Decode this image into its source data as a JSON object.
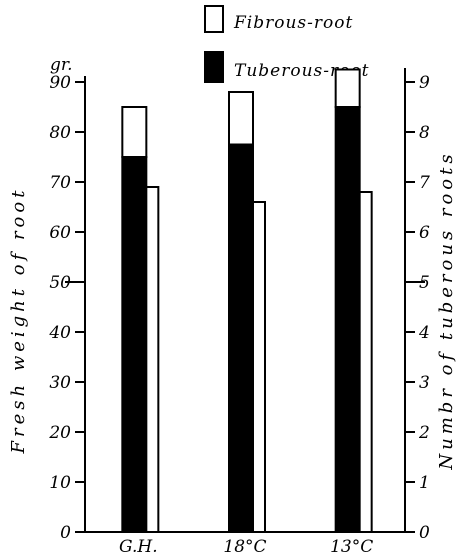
{
  "chart_data": {
    "type": "bar",
    "categories": [
      "G.H.",
      "18°C",
      "13°C"
    ],
    "series": [
      {
        "name": "Tuberous-root",
        "axis": "left",
        "stack": "fresh_weight",
        "fill": "#000000",
        "values": [
          75,
          77.5,
          85
        ]
      },
      {
        "name": "Fibrous-root",
        "axis": "left",
        "stack": "fresh_weight",
        "fill": "#ffffff",
        "values": [
          10,
          10.5,
          7.5
        ]
      },
      {
        "name": "",
        "axis": "right",
        "stack": "tuber_count",
        "fill": "#ffffff",
        "values": [
          6.9,
          6.6,
          6.8
        ]
      }
    ],
    "ylabel": "Fresh weight of root",
    "yunit": "gr.",
    "ylim": [
      0,
      100
    ],
    "yticks": [
      "0",
      "10",
      "20",
      "30",
      "40",
      "50",
      "60",
      "70",
      "80",
      "90"
    ],
    "y2label": "Numbr of tuberous roots",
    "y2lim": [
      0,
      10
    ],
    "y2ticks": [
      "0",
      "1",
      "2",
      "3",
      "4",
      "5",
      "6",
      "7",
      "8",
      "9"
    ],
    "legend": [
      {
        "label": "Fibrous-root",
        "fill": "#ffffff"
      },
      {
        "label": "Tuberous-root",
        "fill": "#000000"
      }
    ],
    "legend_position": "top-right",
    "grid": false
  }
}
